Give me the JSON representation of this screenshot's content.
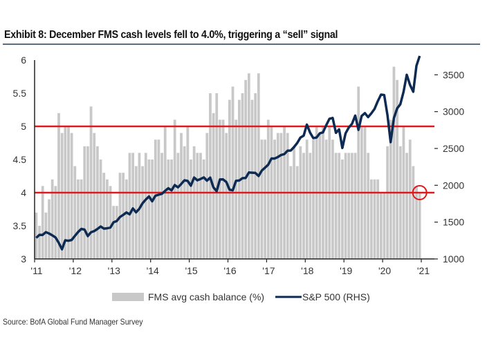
{
  "title": "Exhibit 8: December FMS cash levels fell to 4.0%, triggering a “sell” signal",
  "source": "Source: BofA Global Fund Manager Survey",
  "chart_data": {
    "type": "bar+line",
    "x_tick_labels": [
      "'11",
      "'12",
      "'13",
      "'14",
      "'15",
      "'16",
      "'17",
      "'18",
      "'19",
      "'20",
      "'21"
    ],
    "x_start": "2011-01",
    "x_end": "2020-12",
    "frequency": "monthly",
    "y_left": {
      "ylim": [
        3,
        6
      ],
      "ticks": [
        "3",
        "3.5",
        "4",
        "4.5",
        "5",
        "5.5",
        "6"
      ]
    },
    "y_right": {
      "ylim": [
        1000,
        3700
      ],
      "ticks": [
        "1000",
        "1500",
        "2000",
        "2500",
        "3000",
        "3500"
      ]
    },
    "grid": false,
    "legend_position": "bottom",
    "colors": {
      "bars": "#c8c8c8",
      "line": "#0d2a52",
      "reference": "#e0181b"
    },
    "reference_lines": [
      5.0,
      4.0
    ],
    "highlight": {
      "date": "2020-12",
      "value": 4.0,
      "marker": "circle"
    },
    "series": [
      {
        "name": "FMS avg cash balance (%)",
        "type": "bar",
        "axis": "left",
        "values": [
          3.7,
          3.5,
          4.1,
          3.7,
          3.9,
          4.2,
          4.1,
          5.2,
          4.9,
          5.0,
          5.0,
          4.9,
          4.4,
          4.2,
          4.2,
          4.7,
          4.7,
          5.3,
          4.9,
          4.7,
          4.5,
          4.3,
          4.2,
          4.1,
          3.8,
          3.8,
          4.3,
          4.3,
          4.2,
          4.6,
          4.6,
          4.4,
          4.6,
          4.4,
          4.6,
          4.5,
          4.5,
          4.8,
          4.8,
          4.6,
          5.0,
          4.5,
          4.5,
          5.1,
          4.6,
          4.9,
          4.7,
          5.0,
          4.5,
          4.7,
          4.6,
          4.6,
          4.5,
          4.9,
          5.5,
          5.2,
          5.5,
          5.1,
          5.1,
          4.9,
          5.4,
          5.6,
          5.1,
          5.4,
          5.5,
          5.7,
          5.8,
          5.4,
          5.5,
          5.8,
          4.8,
          4.8,
          5.1,
          5.0,
          4.8,
          4.9,
          4.9,
          5.0,
          4.9,
          4.4,
          4.7,
          4.4,
          4.7,
          4.6,
          4.8,
          4.6,
          4.8,
          5.0,
          4.9,
          5.0,
          4.8,
          5.0,
          4.8,
          4.6,
          4.6,
          4.5,
          4.6,
          4.6,
          4.6,
          4.6,
          5.6,
          5.0,
          5.0,
          4.6,
          4.2,
          4.2,
          4.2,
          4.0,
          4.0,
          4.7,
          5.1,
          5.9,
          5.7,
          4.7,
          5.0,
          4.6,
          4.8,
          4.4,
          4.1,
          4.0
        ]
      },
      {
        "name": "S&P 500 (RHS)",
        "type": "line",
        "axis": "right",
        "values": [
          1286,
          1327,
          1326,
          1364,
          1345,
          1321,
          1292,
          1219,
          1131,
          1253,
          1247,
          1258,
          1312,
          1366,
          1408,
          1398,
          1310,
          1362,
          1379,
          1407,
          1441,
          1412,
          1416,
          1426,
          1498,
          1515,
          1569,
          1598,
          1631,
          1606,
          1686,
          1633,
          1682,
          1757,
          1806,
          1848,
          1783,
          1859,
          1872,
          1884,
          1924,
          1960,
          1931,
          2003,
          1972,
          2018,
          2068,
          2059,
          1995,
          2105,
          2068,
          2086,
          2107,
          2063,
          2104,
          1972,
          1920,
          2079,
          2080,
          2044,
          1940,
          1932,
          2060,
          2065,
          2097,
          2099,
          2174,
          2171,
          2168,
          2126,
          2199,
          2239,
          2279,
          2364,
          2363,
          2384,
          2412,
          2423,
          2470,
          2472,
          2519,
          2575,
          2648,
          2674,
          2824,
          2714,
          2641,
          2648,
          2705,
          2718,
          2816,
          2902,
          2914,
          2712,
          2760,
          2507,
          2704,
          2784,
          2834,
          2946,
          2752,
          2942,
          2980,
          2926,
          2977,
          3038,
          3141,
          3231,
          3226,
          2954,
          2585,
          2912,
          3044,
          3100,
          3271,
          3500,
          3363,
          3270,
          3622,
          3756
        ]
      }
    ]
  }
}
